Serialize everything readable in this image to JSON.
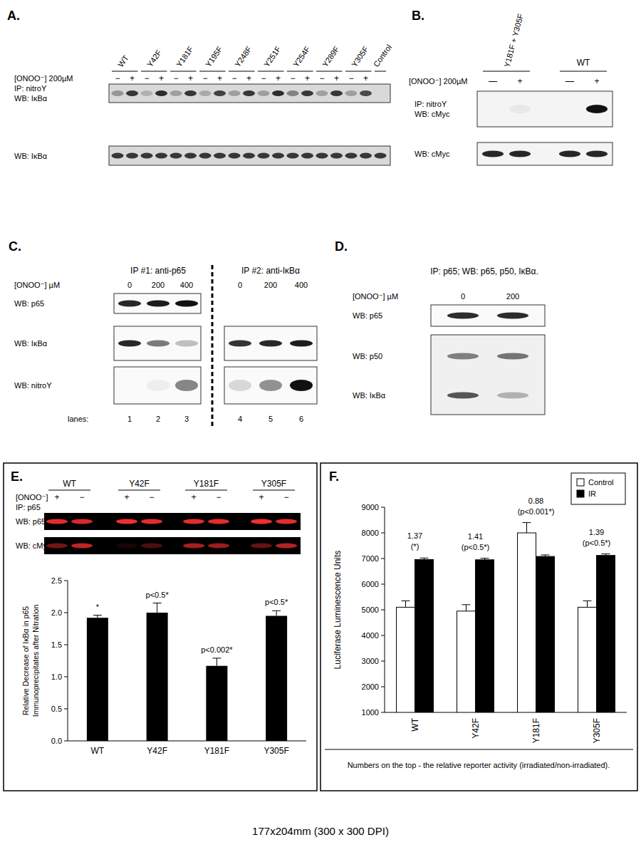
{
  "panels": {
    "A": {
      "label": "A.",
      "lanes": [
        "WT",
        "Y42F",
        "Y181F",
        "Y195F",
        "Y248F",
        "Y251F",
        "Y254F",
        "Y289F",
        "Y305F",
        "Control"
      ],
      "treatment": "[ONOO⁻] 200µM",
      "signs": [
        "−",
        "+"
      ],
      "blots": [
        {
          "labels": [
            "IP: nitroY",
            "WB: IκBα"
          ],
          "bands": [
            0.35,
            0.85,
            0.2,
            0.9,
            0.3,
            0.85,
            0.25,
            0.8,
            0.3,
            0.85,
            0.3,
            0.9,
            0.45,
            0.85,
            0.3,
            0.85,
            0.3,
            0.75,
            0
          ]
        },
        {
          "labels": [
            "WB: IκBα"
          ],
          "bands": [
            0.85,
            0.85,
            0.85,
            0.85,
            0.85,
            0.85,
            0.85,
            0.85,
            0.85,
            0.85,
            0.85,
            0.85,
            0.85,
            0.85,
            0.85,
            0.85,
            0.85,
            0.85,
            0.85
          ]
        }
      ]
    },
    "B": {
      "label": "B.",
      "lanes": [
        "Y181F + Y305F",
        "WT"
      ],
      "treatment": "[ONOO⁻] 200µM",
      "signs": [
        "—",
        "+"
      ],
      "blots": [
        {
          "labels": [
            "IP: nitroY",
            "WB: cMyc"
          ],
          "bands": [
            0,
            0.05,
            0,
            1
          ]
        },
        {
          "labels": [
            "WB: cMyc"
          ],
          "bands": [
            0.9,
            0.9,
            0.9,
            0.9
          ]
        }
      ]
    },
    "C": {
      "label": "C.",
      "groups": [
        "IP #1: anti-p65",
        "IP #2: anti-IκBα"
      ],
      "treatment": "[ONOO⁻] µM",
      "doses": [
        "0",
        "200",
        "400",
        "0",
        "200",
        "400"
      ],
      "rows": [
        {
          "label": "WB: p65",
          "bands": [
            0.9,
            0.95,
            1,
            null,
            null,
            null
          ]
        },
        {
          "label": "WB: IκBα",
          "bands": [
            0.9,
            0.55,
            0.25,
            0.85,
            0.9,
            0.95
          ]
        },
        {
          "label": "WB: nitroY",
          "bands": [
            0,
            0.05,
            0.5,
            0.15,
            0.45,
            1
          ]
        }
      ],
      "lanes_label": "lanes:",
      "lane_numbers": [
        "1",
        "2",
        "3",
        "4",
        "5",
        "6"
      ]
    },
    "D": {
      "label": "D.",
      "title": "IP: p65; WB: p65, p50, IκBα.",
      "treatment": "[ONOO⁻] µM",
      "doses": [
        "0",
        "200"
      ],
      "rows": [
        {
          "label": "WB: p65",
          "bands": [
            0.95,
            0.95
          ]
        },
        {
          "label": "WB: p50",
          "bands": [
            0.55,
            0.6
          ]
        },
        {
          "label": "WB: IκBα",
          "bands": [
            0.75,
            0.3
          ]
        }
      ]
    },
    "E": {
      "label": "E.",
      "lanes": [
        "WT",
        "Y42F",
        "Y181F",
        "Y305F"
      ],
      "treatment": "[ONOO⁻]",
      "signs": [
        "+",
        "−"
      ],
      "ip": "IP: p65",
      "rows": [
        {
          "label": "WB: p65",
          "bands": [
            0.9,
            0.85,
            0.95,
            0.9,
            0.9,
            0.9,
            0.95,
            0.9
          ]
        },
        {
          "label": "WB: cMyc",
          "bands": [
            0.45,
            0.75,
            0.1,
            0.3,
            0.65,
            0.6,
            0.4,
            0.7
          ]
        }
      ]
    },
    "F": {
      "label": "F.",
      "footnote": "Numbers on the top - the relative reporter activity (irradiated/non-irradiated)."
    }
  },
  "chart_data": [
    {
      "type": "bar",
      "y_label": [
        "Relative Decrease of IκBα in p65",
        "Immunoprecipitates after Nitration"
      ],
      "categories": [
        "WT",
        "Y42F",
        "Y181F",
        "Y305F"
      ],
      "values": [
        1.92,
        2.0,
        1.17,
        1.95
      ],
      "errors": [
        0.04,
        0.15,
        0.12,
        0.08
      ],
      "annotations": [
        "*",
        "p<0.5*",
        "p<0.002*",
        "p<0.5*"
      ],
      "color": "#000000",
      "ylim": [
        0,
        2.5
      ],
      "yticks": [
        {
          "value": 0,
          "label": "0.0"
        },
        {
          "value": 0.5,
          "label": "0.5"
        },
        {
          "value": 1,
          "label": "1.0"
        },
        {
          "value": 1.5,
          "label": "1.5"
        },
        {
          "value": 2,
          "label": "2.0"
        },
        {
          "value": 2.5,
          "label": "2.5"
        }
      ],
      "grid": false
    },
    {
      "type": "bar",
      "y_label": "Luciferase Luminescence Units",
      "categories": [
        "WT",
        "Y42F",
        "Y181F",
        "Y305F"
      ],
      "series": [
        {
          "name": "Control",
          "color": "#ffffff",
          "values": [
            5100,
            4950,
            8000,
            5100
          ],
          "errors": [
            250,
            250,
            400,
            250
          ]
        },
        {
          "name": "IR",
          "color": "#000000",
          "values": [
            6960,
            6950,
            7080,
            7120
          ],
          "errors": [
            60,
            60,
            60,
            60
          ]
        }
      ],
      "annotations": [
        [
          "1.37",
          "(*)"
        ],
        [
          "1.41",
          "(p<0.5*)"
        ],
        [
          "0.88",
          "(p<0.001*)"
        ],
        [
          "1.39",
          "(p<0.5*)"
        ]
      ],
      "ylim": [
        1000,
        9000
      ],
      "yticks": [
        1000,
        2000,
        3000,
        4000,
        5000,
        6000,
        7000,
        8000,
        9000
      ],
      "legend": "upper right",
      "grid": false
    }
  ],
  "caption": "177x204mm (300 x 300 DPI)"
}
